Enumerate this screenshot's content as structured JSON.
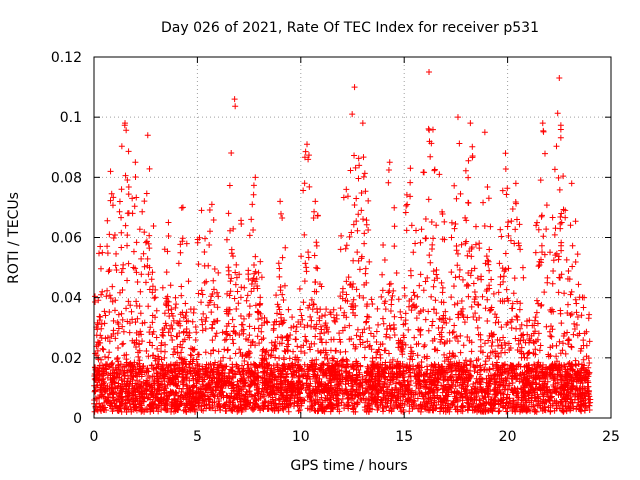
{
  "chart_data": {
    "type": "scatter",
    "title": "Day 026 of 2021, Rate Of TEC Index for receiver p531",
    "xlabel": "GPS time / hours",
    "ylabel": "ROTI / TECUs",
    "xlim": [
      0,
      25
    ],
    "ylim": [
      0,
      0.12
    ],
    "xticks": [
      0,
      5,
      10,
      15,
      20,
      25
    ],
    "xtick_labels": [
      "0",
      "5",
      "10",
      "15",
      "20",
      "25"
    ],
    "yticks": [
      0,
      0.02,
      0.04,
      0.06,
      0.08,
      0.1,
      0.12
    ],
    "ytick_labels": [
      "0",
      "0.02",
      "0.04",
      "0.06",
      "0.08",
      "0.1",
      "0.12"
    ],
    "grid": true,
    "marker": "plus",
    "color": "#ff0000",
    "x_range_of_data": [
      0,
      24
    ],
    "series_peaks": [
      {
        "x": 0.3,
        "y": 0.057
      },
      {
        "x": 0.8,
        "y": 0.082
      },
      {
        "x": 1.5,
        "y": 0.098
      },
      {
        "x": 2.0,
        "y": 0.085
      },
      {
        "x": 2.6,
        "y": 0.094
      },
      {
        "x": 3.6,
        "y": 0.065
      },
      {
        "x": 4.3,
        "y": 0.07
      },
      {
        "x": 5.2,
        "y": 0.069
      },
      {
        "x": 5.7,
        "y": 0.071
      },
      {
        "x": 6.8,
        "y": 0.106
      },
      {
        "x": 7.8,
        "y": 0.08
      },
      {
        "x": 9.0,
        "y": 0.072
      },
      {
        "x": 10.3,
        "y": 0.091
      },
      {
        "x": 10.7,
        "y": 0.072
      },
      {
        "x": 12.2,
        "y": 0.076
      },
      {
        "x": 12.6,
        "y": 0.11
      },
      {
        "x": 13.0,
        "y": 0.098
      },
      {
        "x": 14.3,
        "y": 0.085
      },
      {
        "x": 15.3,
        "y": 0.083
      },
      {
        "x": 16.2,
        "y": 0.115
      },
      {
        "x": 16.7,
        "y": 0.081
      },
      {
        "x": 17.6,
        "y": 0.1
      },
      {
        "x": 18.2,
        "y": 0.098
      },
      {
        "x": 18.9,
        "y": 0.095
      },
      {
        "x": 19.9,
        "y": 0.088
      },
      {
        "x": 20.4,
        "y": 0.078
      },
      {
        "x": 21.7,
        "y": 0.098
      },
      {
        "x": 22.5,
        "y": 0.113
      },
      {
        "x": 23.1,
        "y": 0.078
      },
      {
        "x": 23.7,
        "y": 0.04
      }
    ]
  }
}
